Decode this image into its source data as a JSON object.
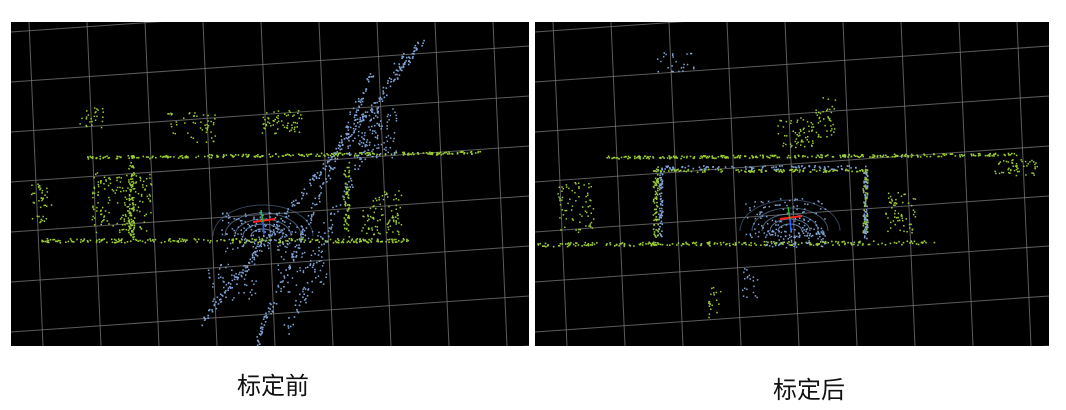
{
  "figure": {
    "panels": [
      {
        "caption": "标定前"
      },
      {
        "caption": "标定后"
      }
    ]
  },
  "colors": {
    "background": "#000000",
    "grid": "#7a7a7a",
    "front_lidar_points": "#9acd32",
    "rear_lidar_points": "#7fa4d6",
    "axis_x": "#ff2020",
    "axis_y": "#20c020",
    "axis_z": "#3060ff"
  }
}
